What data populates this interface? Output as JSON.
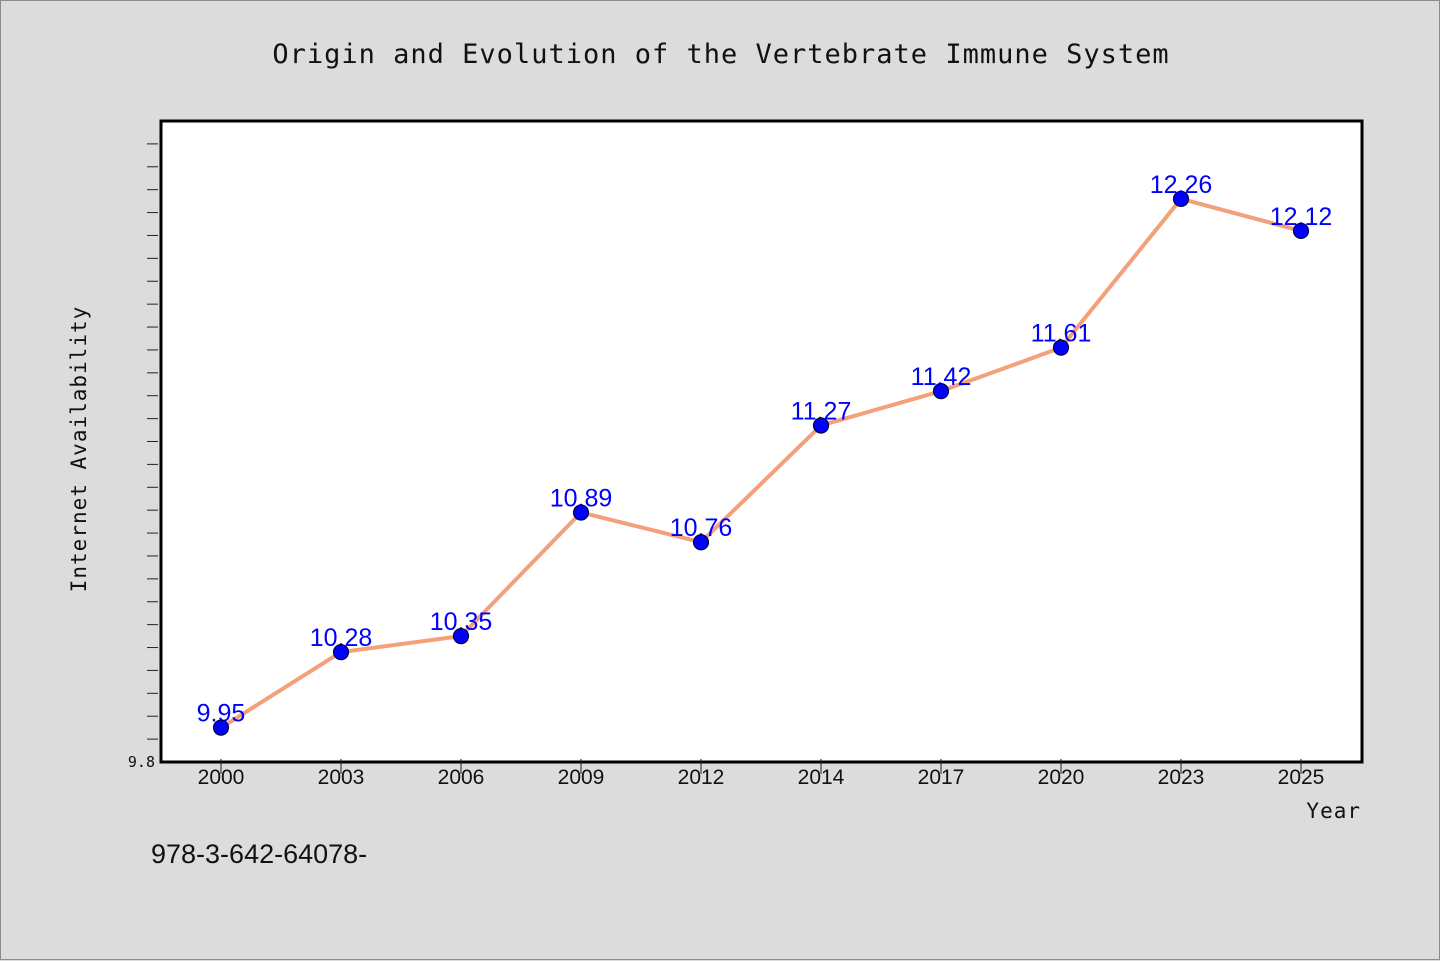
{
  "chart_data": {
    "type": "line",
    "title": "Origin and Evolution of the Vertebrate Immune System",
    "xlabel": "Year",
    "ylabel": "Internet Availability",
    "categories": [
      "2000",
      "2003",
      "2006",
      "2009",
      "2012",
      "2014",
      "2017",
      "2020",
      "2023",
      "2025"
    ],
    "series": [
      {
        "values": [
          9.95,
          10.28,
          10.35,
          10.89,
          10.76,
          11.27,
          11.42,
          11.61,
          12.26,
          12.12
        ],
        "labels": [
          "9.95",
          "10.28",
          "10.35",
          "10.89",
          "10.76",
          "11.27",
          "11.42",
          "11.61",
          "12.26",
          "12.12"
        ],
        "line_color": "#f4a07a",
        "marker_color": "#0000ff"
      }
    ],
    "ylim": [
      9.8,
      12.6
    ],
    "y_tick_labels": [
      "9.8"
    ],
    "grid": false,
    "footer_note": "978-3-642-64078-"
  },
  "colors": {
    "background": "#dcdcdc",
    "plot_background": "#ffffff",
    "line": "#f4a07a",
    "marker": "#0000ff",
    "data_label": "#0000ff"
  }
}
